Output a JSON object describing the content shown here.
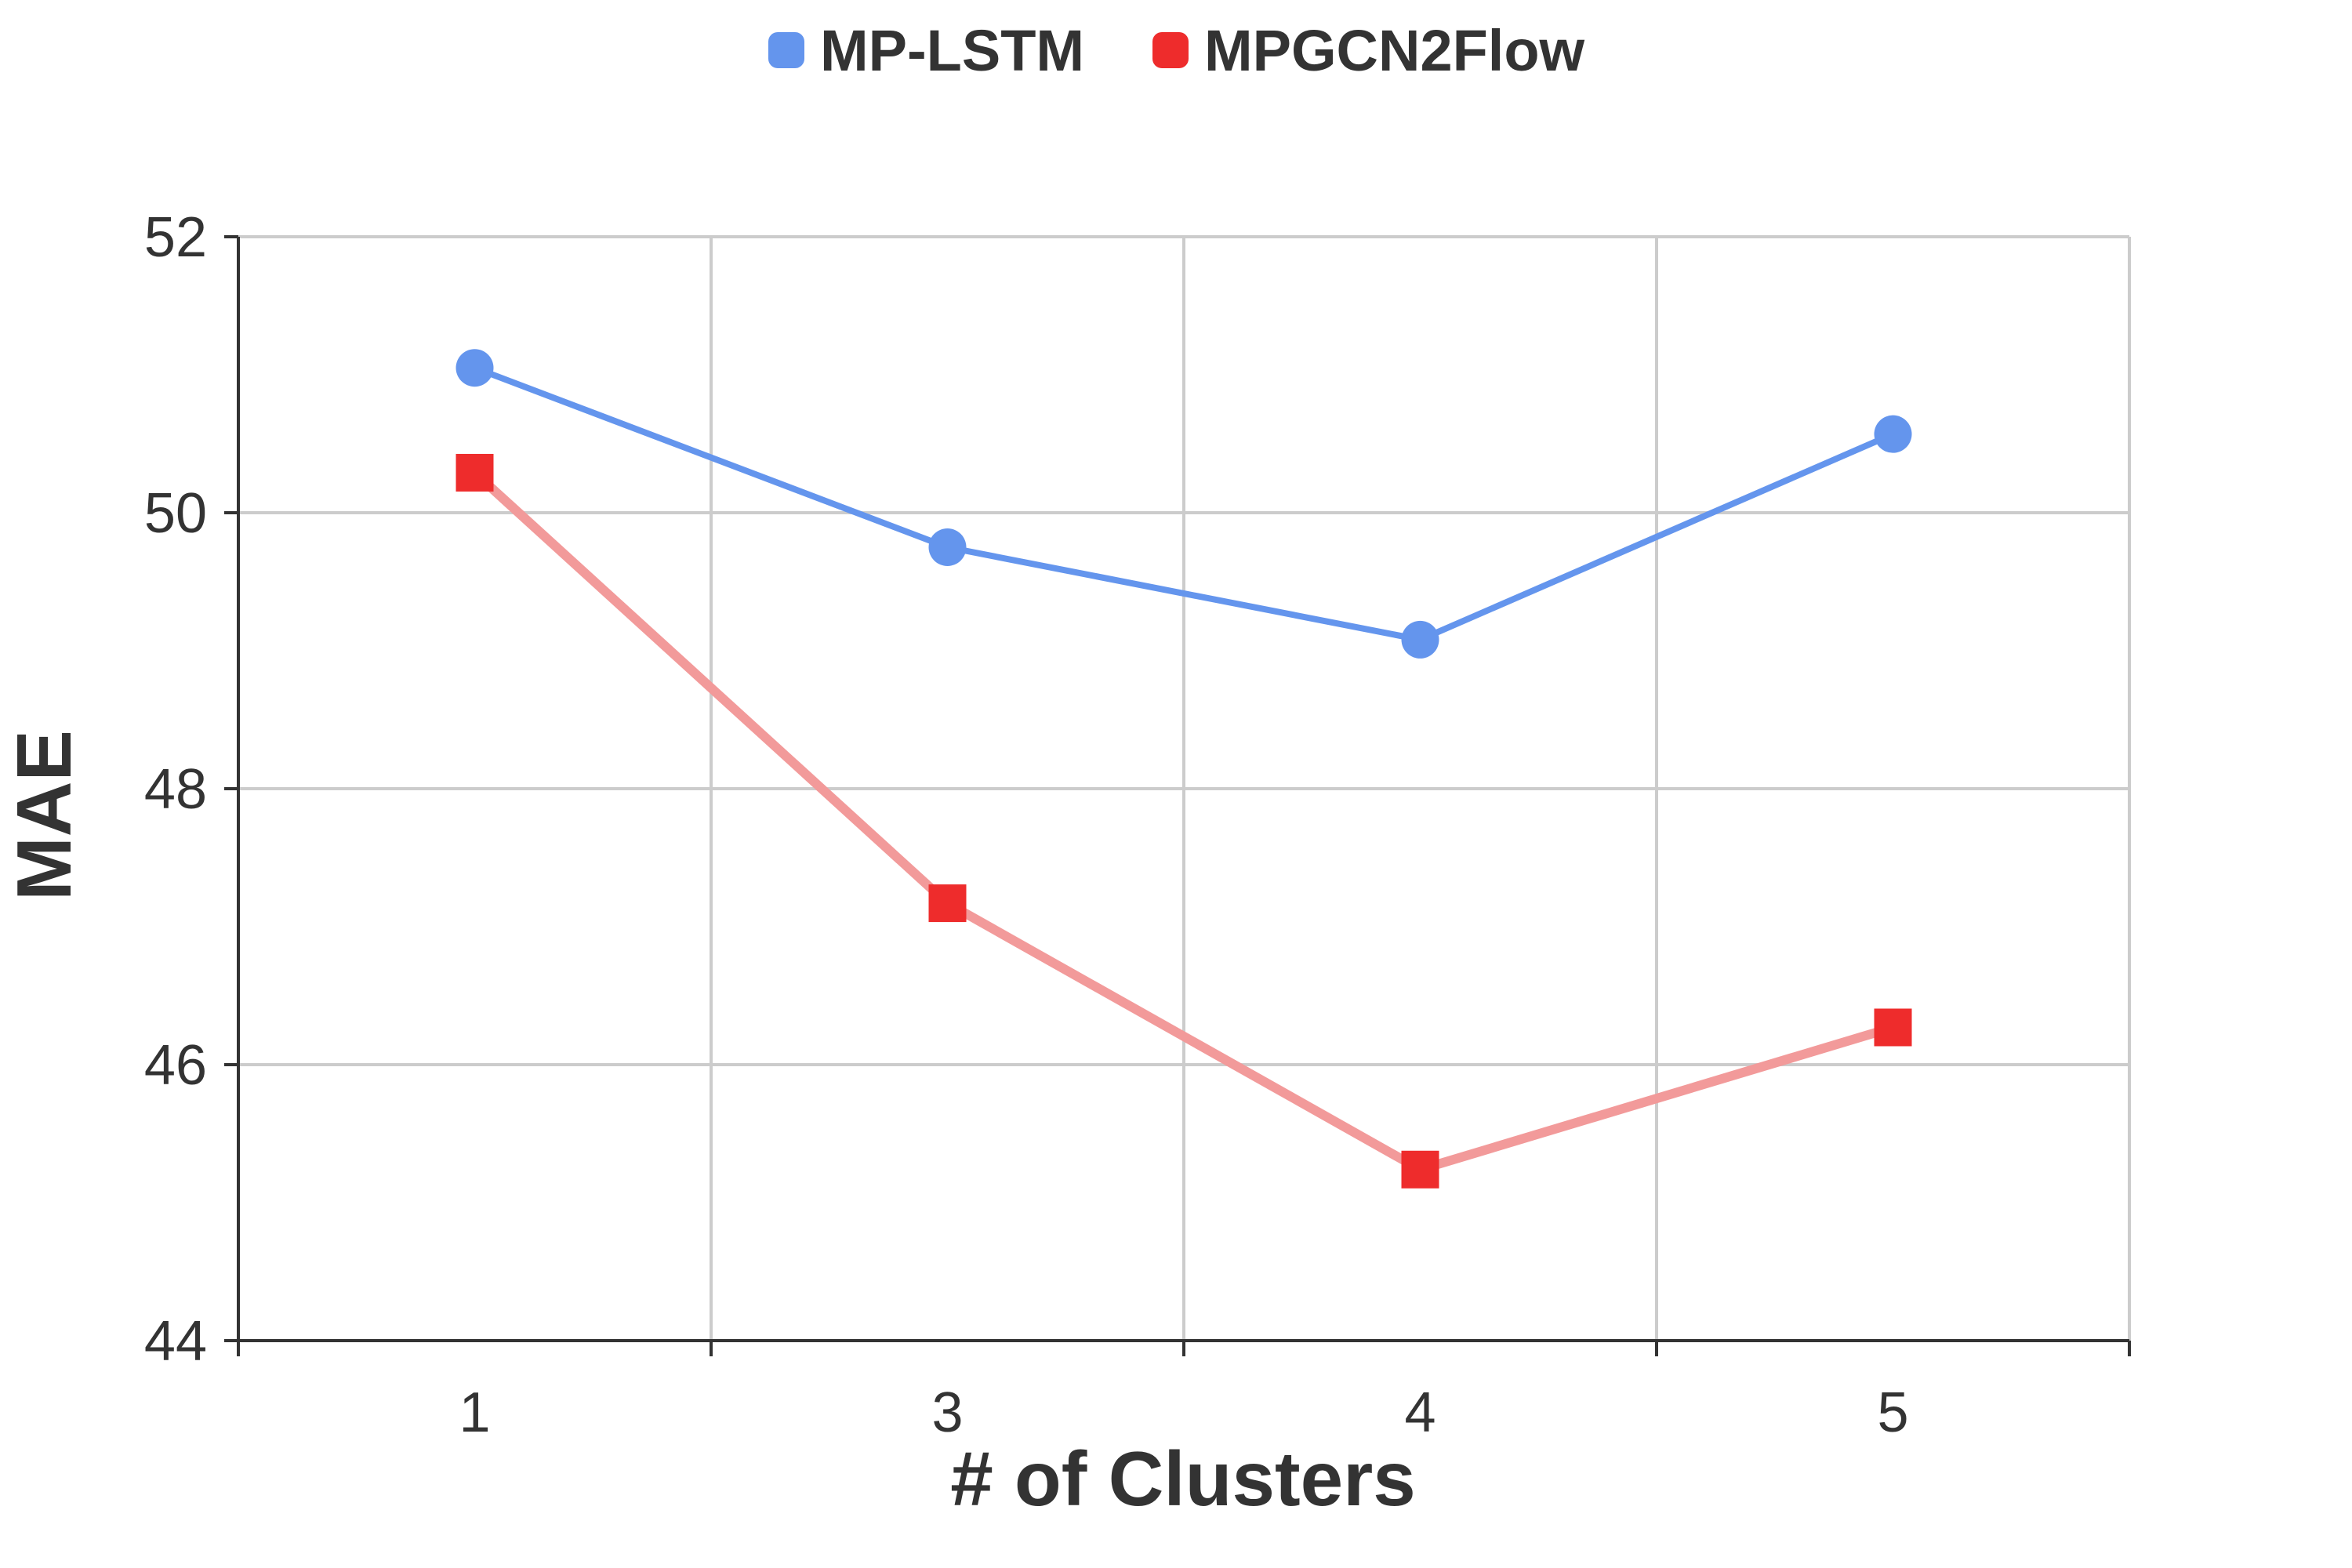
{
  "chart_data": {
    "type": "line",
    "categories": [
      "1",
      "3",
      "4",
      "5"
    ],
    "xlabel": "# of Clusters",
    "ylabel": "MAE",
    "ylim": [
      44,
      52
    ],
    "yticks": [
      44,
      46,
      48,
      50,
      52
    ],
    "grid": true,
    "legend_position": "top-center",
    "series": [
      {
        "name": "MP-LSTM",
        "values": [
          51.05,
          49.75,
          49.08,
          50.57
        ],
        "color": "#6495ed",
        "marker": "circle",
        "line_color": "#6495ed"
      },
      {
        "name": "MPGCN2Flow",
        "values": [
          50.29,
          47.17,
          45.24,
          46.27
        ],
        "color": "#ee2c2c",
        "marker": "square",
        "line_color": "#f29a9a"
      }
    ]
  }
}
